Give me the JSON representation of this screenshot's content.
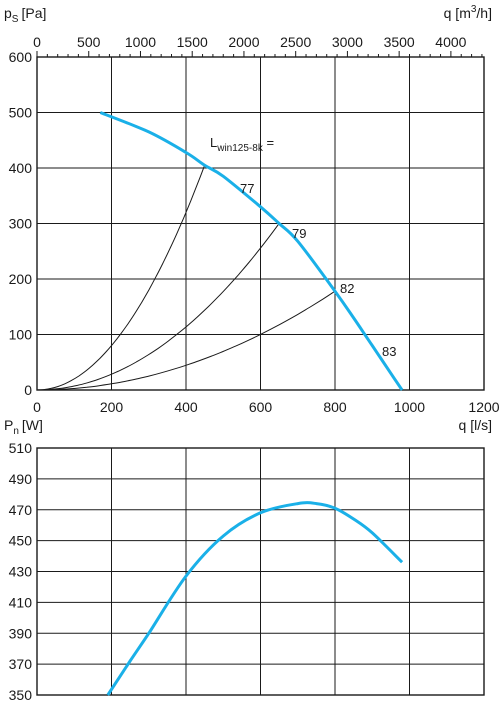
{
  "chart_data": [
    {
      "type": "line",
      "ylabel": "p",
      "ylabel_sub": "S",
      "ylabel_unit": "[Pa]",
      "xlabel": "q [l/s]",
      "top_xlabel_prefix": "q [m",
      "top_xlabel_sup": "3",
      "top_xlabel_suffix": "/h]",
      "xlim": [
        0,
        1200
      ],
      "ylim": [
        0,
        600
      ],
      "top_xlim": [
        0,
        4320
      ],
      "x_ticks": [
        "0",
        "200",
        "400",
        "600",
        "800",
        "1000",
        "1200"
      ],
      "y_ticks": [
        "0",
        "100",
        "200",
        "300",
        "400",
        "500",
        "600"
      ],
      "top_ticks": [
        "0",
        "500",
        "1000",
        "1500",
        "2000",
        "2500",
        "3000",
        "3500",
        "4000"
      ],
      "grid": true,
      "fan_curve": {
        "color": "#1ab0e8",
        "x": [
          170,
          300,
          400,
          450,
          500,
          600,
          650,
          700,
          800,
          850,
          900,
          950,
          980
        ],
        "y": [
          500,
          465,
          428,
          405,
          385,
          330,
          300,
          268,
          178,
          130,
          80,
          30,
          0
        ]
      },
      "system_curves": [
        {
          "label": "77",
          "x_end": 450,
          "y_end": 405
        },
        {
          "label": "79",
          "x_end": 650,
          "y_end": 300
        },
        {
          "label": "82",
          "x_end": 800,
          "y_end": 178
        }
      ],
      "extra_label": "83",
      "legend_main": "L",
      "legend_sub": "win125-8k",
      "legend_suffix": " ="
    },
    {
      "type": "line",
      "ylabel": "P",
      "ylabel_sub": "n",
      "ylabel_unit": "[W]",
      "xlabel": "q [l/s]",
      "xlim": [
        0,
        1200
      ],
      "ylim": [
        350,
        510
      ],
      "y_ticks": [
        "350",
        "370",
        "390",
        "410",
        "430",
        "450",
        "470",
        "490",
        "510"
      ],
      "grid": true,
      "power_curve": {
        "color": "#1ab0e8",
        "x": [
          190,
          250,
          300,
          400,
          500,
          600,
          700,
          750,
          800,
          850,
          900,
          980
        ],
        "y": [
          350,
          372,
          390,
          427,
          453,
          468,
          474,
          474,
          471,
          464,
          455,
          436
        ]
      }
    }
  ]
}
